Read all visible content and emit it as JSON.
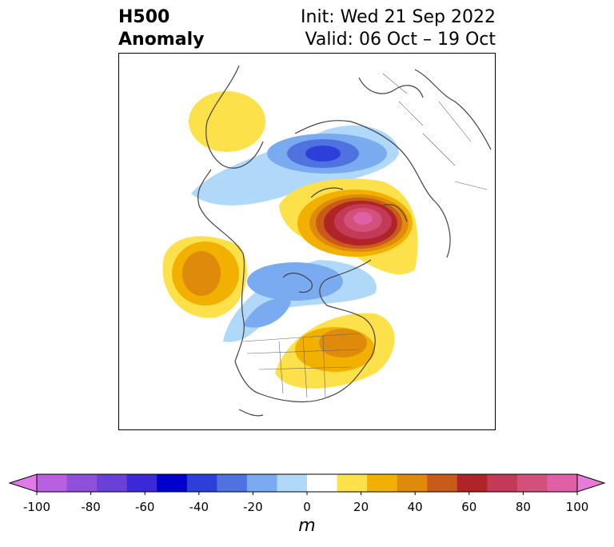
{
  "title": {
    "left_line1": "H500",
    "left_line2": "Anomaly",
    "right_line1": "Init: Wed 21 Sep 2022",
    "right_line2": "Valid: 06 Oct – 19 Oct"
  },
  "colorbar": {
    "unit": "m",
    "ticks": [
      "-100",
      "-80",
      "-60",
      "-40",
      "-20",
      "0",
      "20",
      "40",
      "60",
      "80",
      "100"
    ],
    "colors": [
      "#e07ae8",
      "#b860e0",
      "#9050dc",
      "#6a40d8",
      "#3c28d6",
      "#0000cc",
      "#2c3fd8",
      "#4f72e0",
      "#7aaaf0",
      "#b0d8f8",
      "#ffffff",
      "#fde14a",
      "#f2b100",
      "#df8a0b",
      "#c85a1a",
      "#b02428",
      "#c23a58",
      "#d2507a",
      "#e060a8",
      "#e87ad8"
    ]
  }
}
